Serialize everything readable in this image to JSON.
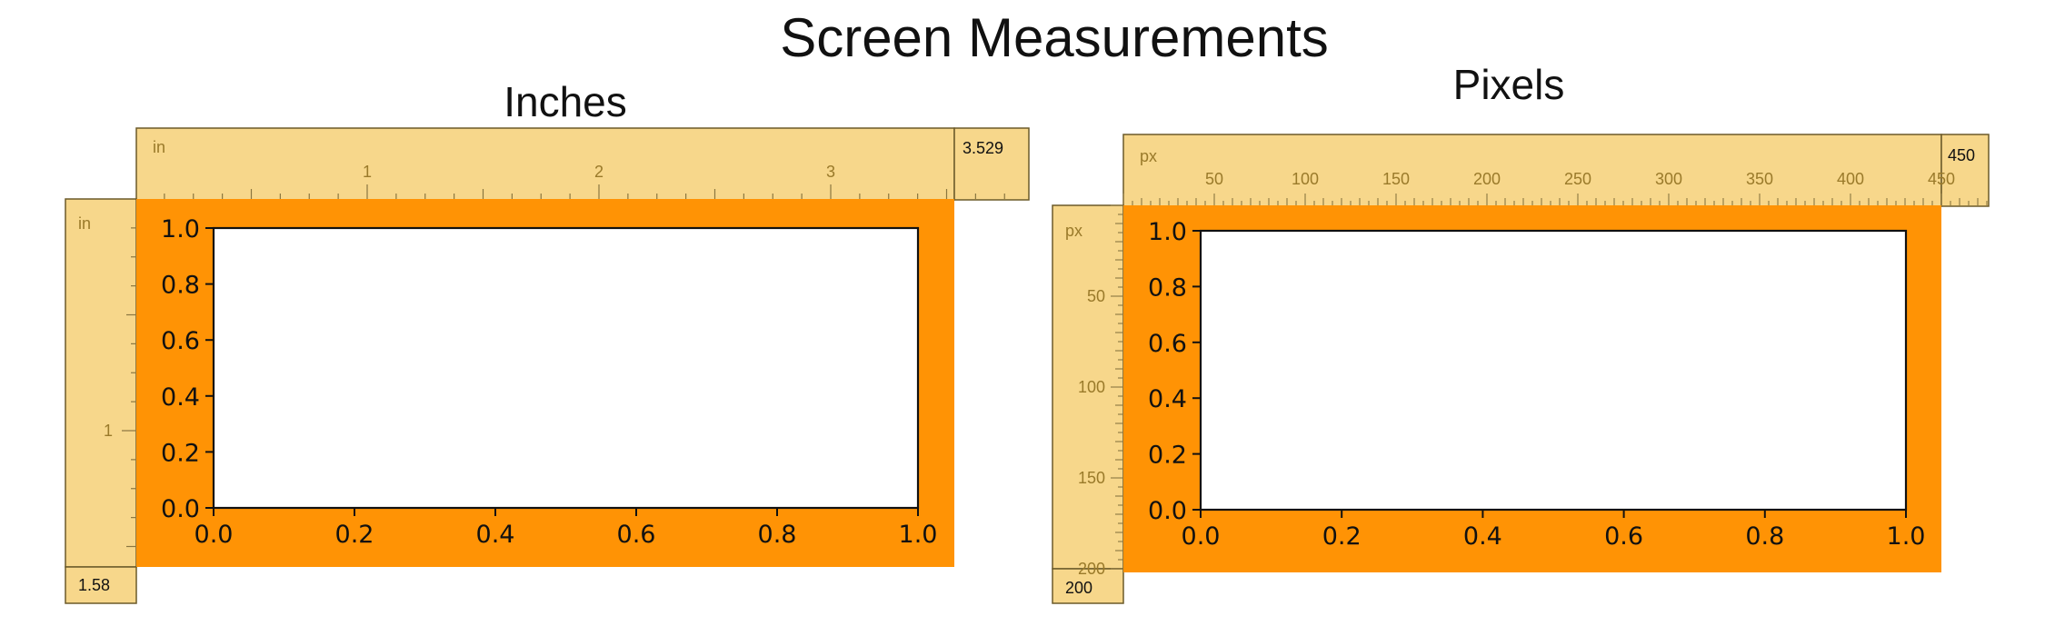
{
  "figure": {
    "title": "Screen Measurements",
    "colors": {
      "ruler_bg": "#f7d78b",
      "ruler_line": "#8a7640",
      "ruler_text": "#9a7a2a",
      "figure_bg": "#ff9305",
      "plot_bg": "#ffffff",
      "ink": "#111111"
    }
  },
  "panels": [
    {
      "title": "Inches",
      "ruler": {
        "unit": "in",
        "top_marks": [
          "1",
          "2",
          "3"
        ],
        "left_marks": [
          "1"
        ],
        "width_value": "3.529",
        "height_value": "1.58"
      },
      "chart_data": {
        "type": "line",
        "title": "",
        "xlabel": "",
        "ylabel": "",
        "xlim": [
          0,
          1
        ],
        "ylim": [
          0,
          1
        ],
        "x_ticks": [
          "0.0",
          "0.2",
          "0.4",
          "0.6",
          "0.8",
          "1.0"
        ],
        "y_ticks": [
          "0.0",
          "0.2",
          "0.4",
          "0.6",
          "0.8",
          "1.0"
        ],
        "series": [],
        "grid": false
      }
    },
    {
      "title": "Pixels",
      "ruler": {
        "unit": "px",
        "top_marks": [
          "50",
          "100",
          "150",
          "200",
          "250",
          "300",
          "350",
          "400",
          "450"
        ],
        "left_marks": [
          "50",
          "100",
          "150",
          "200"
        ],
        "width_value": "450",
        "height_value": "200"
      },
      "chart_data": {
        "type": "line",
        "title": "",
        "xlabel": "",
        "ylabel": "",
        "xlim": [
          0,
          1
        ],
        "ylim": [
          0,
          1
        ],
        "x_ticks": [
          "0.0",
          "0.2",
          "0.4",
          "0.6",
          "0.8",
          "1.0"
        ],
        "y_ticks": [
          "0.0",
          "0.2",
          "0.4",
          "0.6",
          "0.8",
          "1.0"
        ],
        "series": [],
        "grid": false
      }
    }
  ]
}
